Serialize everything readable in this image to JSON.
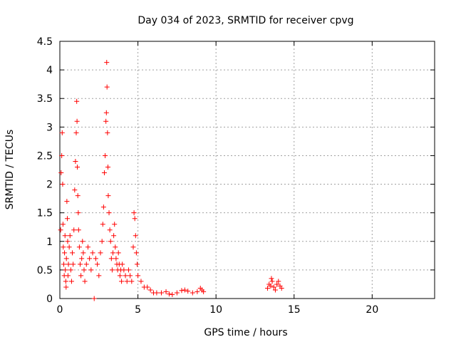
{
  "chart_data": {
    "type": "scatter",
    "title": "Day 034 of 2023, SRMTID for receiver cpvg",
    "xlabel": "GPS time / hours",
    "ylabel": "SRMTID / TECUs",
    "xlim": [
      0,
      24
    ],
    "ylim": [
      0,
      4.5
    ],
    "xticks": [
      0,
      5,
      10,
      15,
      20
    ],
    "yticks": [
      0,
      0.5,
      1,
      1.5,
      2,
      2.5,
      3,
      3.5,
      4,
      4.5
    ],
    "xtick_labels": [
      "0",
      "5",
      "10",
      "15",
      "20"
    ],
    "ytick_labels": [
      "0",
      "0.5",
      "1",
      "1.5",
      "2",
      "2.5",
      "3",
      "3.5",
      "4",
      "4.5"
    ],
    "grid": true,
    "marker": "+",
    "color": "#ff0000",
    "series": [
      {
        "name": "SRMTID",
        "points": [
          [
            0.05,
            1.2
          ],
          [
            0.08,
            2.2
          ],
          [
            0.12,
            2.5
          ],
          [
            0.15,
            2.9
          ],
          [
            0.18,
            2.0
          ],
          [
            0.2,
            1.3
          ],
          [
            0.22,
            0.9
          ],
          [
            0.25,
            0.6
          ],
          [
            0.28,
            0.4
          ],
          [
            0.3,
            0.8
          ],
          [
            0.33,
            1.1
          ],
          [
            0.35,
            0.5
          ],
          [
            0.38,
            0.3
          ],
          [
            0.4,
            0.2
          ],
          [
            0.42,
            0.7
          ],
          [
            0.45,
            1.7
          ],
          [
            0.48,
            1.4
          ],
          [
            0.5,
            1.0
          ],
          [
            0.52,
            0.4
          ],
          [
            0.55,
            0.6
          ],
          [
            0.6,
            0.9
          ],
          [
            0.65,
            1.1
          ],
          [
            0.7,
            0.5
          ],
          [
            0.75,
            0.3
          ],
          [
            0.8,
            0.8
          ],
          [
            0.85,
            0.6
          ],
          [
            0.9,
            1.2
          ],
          [
            0.95,
            1.9
          ],
          [
            1.0,
            2.4
          ],
          [
            1.05,
            2.9
          ],
          [
            1.08,
            3.45
          ],
          [
            1.1,
            3.1
          ],
          [
            1.12,
            2.3
          ],
          [
            1.15,
            1.8
          ],
          [
            1.18,
            1.5
          ],
          [
            1.2,
            1.2
          ],
          [
            1.25,
            0.9
          ],
          [
            1.3,
            0.6
          ],
          [
            1.35,
            0.4
          ],
          [
            1.4,
            0.7
          ],
          [
            1.45,
            1.0
          ],
          [
            1.5,
            0.8
          ],
          [
            1.55,
            0.5
          ],
          [
            1.6,
            0.3
          ],
          [
            1.7,
            0.6
          ],
          [
            1.8,
            0.9
          ],
          [
            1.9,
            0.7
          ],
          [
            2.0,
            0.5
          ],
          [
            2.1,
            0.8
          ],
          [
            2.2,
            0.0
          ],
          [
            2.3,
            0.7
          ],
          [
            2.4,
            0.6
          ],
          [
            2.5,
            0.4
          ],
          [
            2.6,
            0.8
          ],
          [
            2.7,
            1.0
          ],
          [
            2.75,
            1.3
          ],
          [
            2.8,
            1.6
          ],
          [
            2.85,
            2.2
          ],
          [
            2.9,
            2.5
          ],
          [
            2.95,
            3.1
          ],
          [
            2.98,
            3.25
          ],
          [
            3.0,
            4.13
          ],
          [
            3.02,
            3.7
          ],
          [
            3.05,
            2.9
          ],
          [
            3.08,
            2.3
          ],
          [
            3.1,
            1.8
          ],
          [
            3.15,
            1.5
          ],
          [
            3.2,
            1.2
          ],
          [
            3.25,
            1.0
          ],
          [
            3.3,
            0.7
          ],
          [
            3.35,
            0.5
          ],
          [
            3.4,
            0.8
          ],
          [
            3.45,
            1.1
          ],
          [
            3.5,
            1.3
          ],
          [
            3.55,
            0.9
          ],
          [
            3.6,
            0.7
          ],
          [
            3.65,
            0.6
          ],
          [
            3.7,
            0.5
          ],
          [
            3.75,
            0.8
          ],
          [
            3.8,
            0.6
          ],
          [
            3.85,
            0.4
          ],
          [
            3.9,
            0.5
          ],
          [
            3.95,
            0.3
          ],
          [
            4.0,
            0.6
          ],
          [
            4.1,
            0.5
          ],
          [
            4.2,
            0.4
          ],
          [
            4.3,
            0.3
          ],
          [
            4.4,
            0.5
          ],
          [
            4.5,
            0.4
          ],
          [
            4.6,
            0.3
          ],
          [
            4.7,
            0.9
          ],
          [
            4.75,
            1.5
          ],
          [
            4.8,
            1.4
          ],
          [
            4.85,
            1.1
          ],
          [
            4.9,
            0.8
          ],
          [
            4.95,
            0.6
          ],
          [
            5.0,
            0.4
          ],
          [
            5.2,
            0.3
          ],
          [
            5.4,
            0.2
          ],
          [
            5.6,
            0.2
          ],
          [
            5.8,
            0.15
          ],
          [
            6.0,
            0.1
          ],
          [
            6.2,
            0.1
          ],
          [
            6.5,
            0.1
          ],
          [
            6.8,
            0.12
          ],
          [
            7.0,
            0.08
          ],
          [
            7.2,
            0.07
          ],
          [
            7.5,
            0.1
          ],
          [
            7.8,
            0.14
          ],
          [
            8.0,
            0.15
          ],
          [
            8.2,
            0.13
          ],
          [
            8.5,
            0.1
          ],
          [
            8.8,
            0.12
          ],
          [
            9.0,
            0.18
          ],
          [
            9.1,
            0.15
          ],
          [
            9.2,
            0.12
          ],
          [
            13.3,
            0.18
          ],
          [
            13.4,
            0.25
          ],
          [
            13.5,
            0.22
          ],
          [
            13.55,
            0.35
          ],
          [
            13.6,
            0.3
          ],
          [
            13.7,
            0.2
          ],
          [
            13.8,
            0.15
          ],
          [
            13.9,
            0.25
          ],
          [
            14.0,
            0.3
          ],
          [
            14.1,
            0.22
          ],
          [
            14.2,
            0.18
          ]
        ]
      }
    ]
  }
}
